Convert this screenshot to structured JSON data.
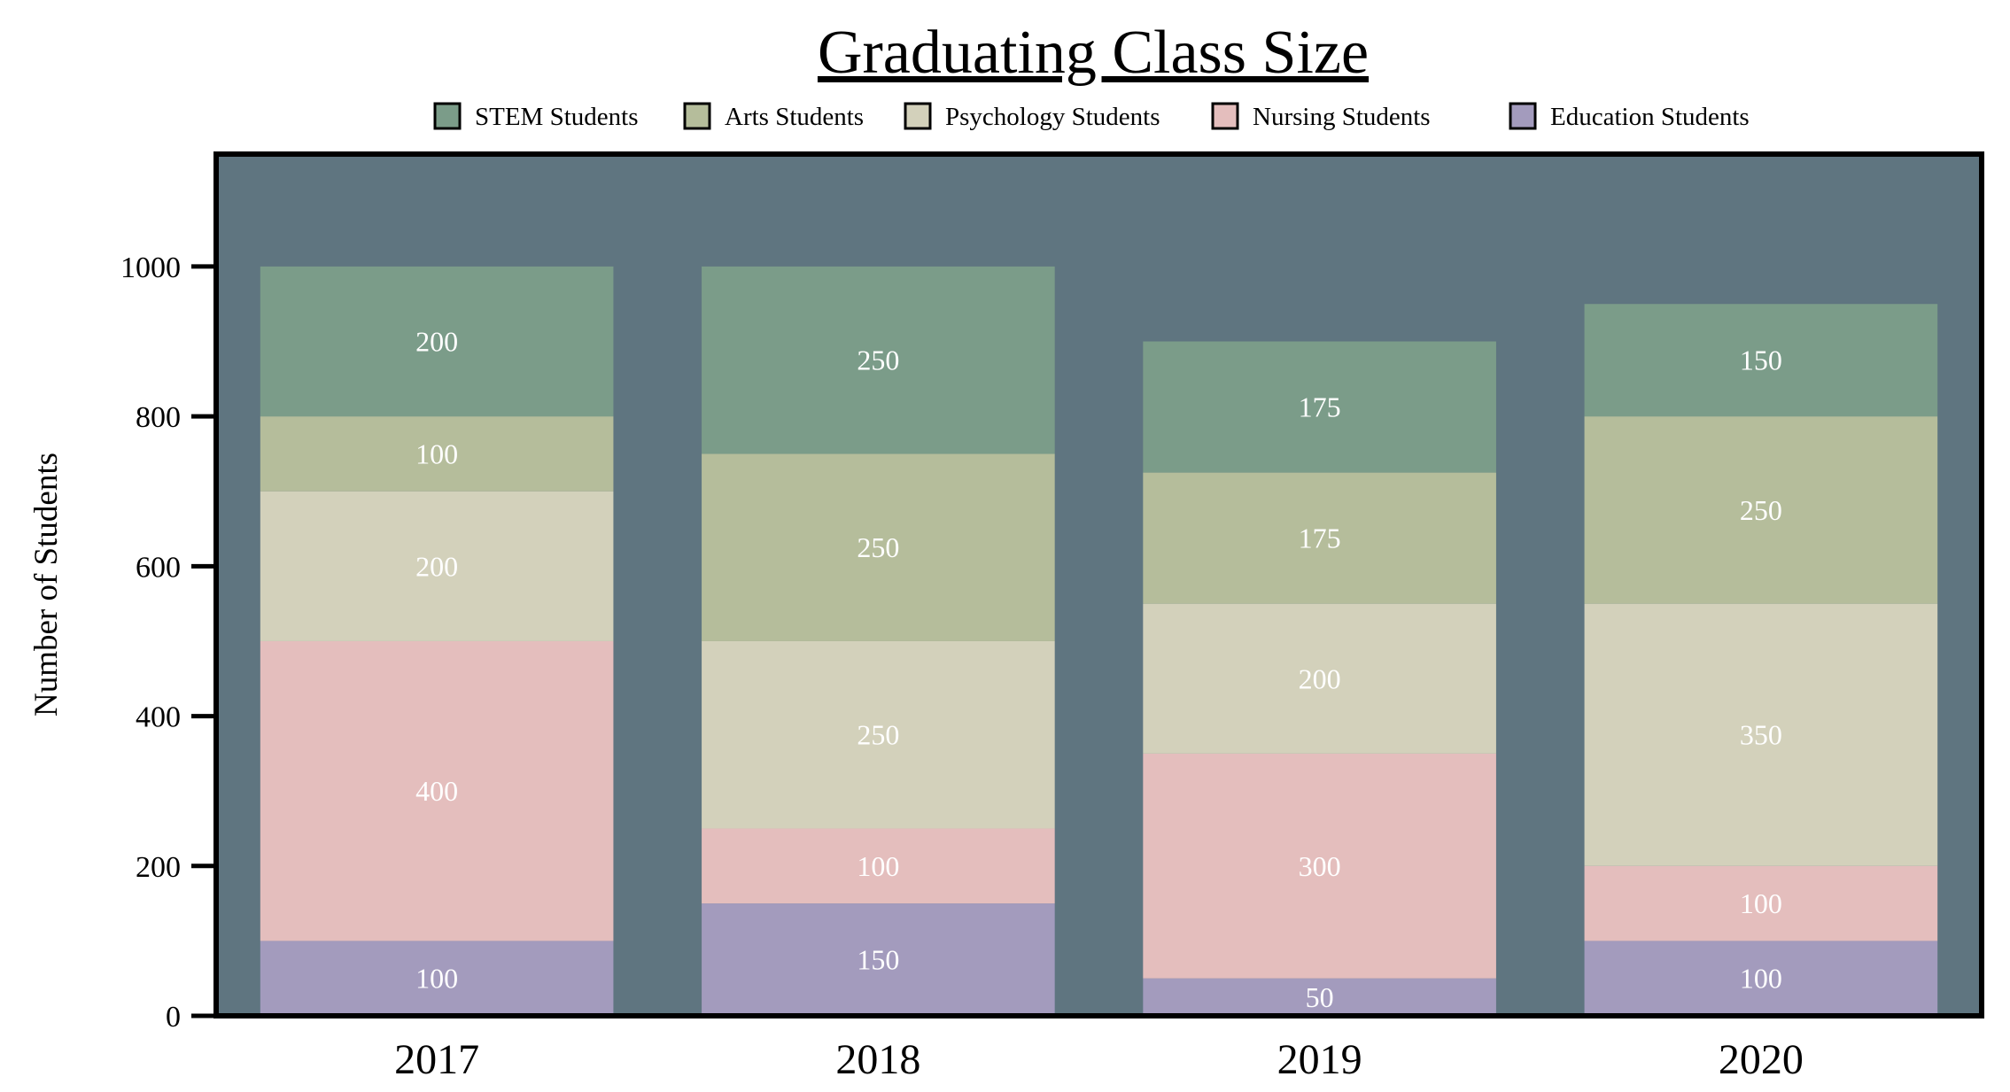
{
  "chart_data": {
    "type": "bar",
    "stacked": true,
    "title": "Graduating Class Size",
    "xlabel": "",
    "ylabel": "Number of Students",
    "categories": [
      "2017",
      "2018",
      "2019",
      "2020"
    ],
    "ylim": [
      0,
      1150
    ],
    "yticks": [
      0,
      200,
      400,
      600,
      800,
      1000
    ],
    "legend_position": "top",
    "plot_background": "#5f7580",
    "series": [
      {
        "name": "Education Students",
        "color": "#a39bbd",
        "values": [
          100,
          150,
          50,
          100
        ]
      },
      {
        "name": "Nursing Students",
        "color": "#e4bebd",
        "values": [
          400,
          100,
          300,
          100
        ]
      },
      {
        "name": "Psychology Students",
        "color": "#d3d1bb",
        "values": [
          200,
          250,
          200,
          350
        ]
      },
      {
        "name": "Arts Students",
        "color": "#b5bd9b",
        "values": [
          100,
          250,
          175,
          250
        ]
      },
      {
        "name": "STEM Students",
        "color": "#7b9c89",
        "values": [
          200,
          250,
          175,
          150
        ]
      }
    ],
    "legend_order": [
      "STEM Students",
      "Arts Students",
      "Psychology Students",
      "Nursing Students",
      "Education Students"
    ]
  }
}
